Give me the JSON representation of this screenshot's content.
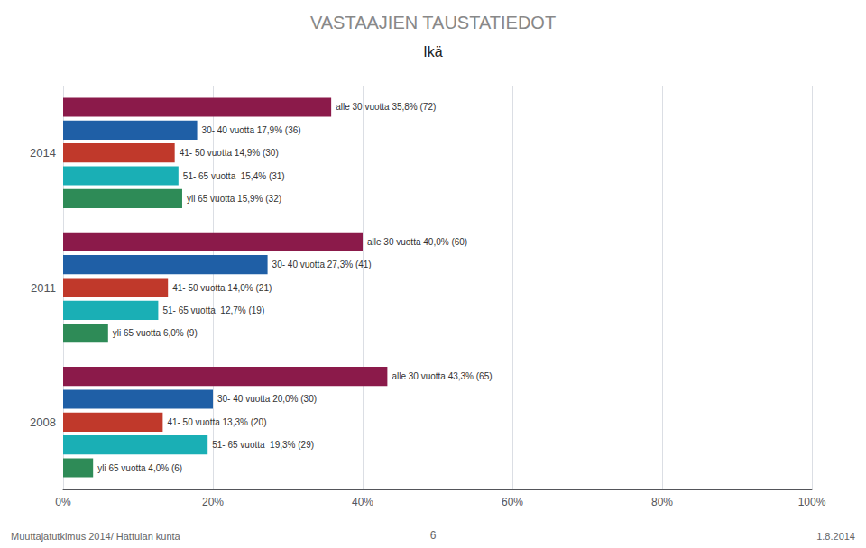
{
  "chart_data": {
    "type": "bar",
    "orientation": "horizontal",
    "title": "VASTAAJIEN TAUSTATIEDOT",
    "subtitle": "Ikä",
    "categories": [
      "2014",
      "2011",
      "2008"
    ],
    "series": [
      {
        "color": "#8B1A4A",
        "values": [
          35.8,
          40.0,
          43.3
        ],
        "value_labels": [
          "alle 30 vuotta 35,8% (72)",
          "alle 30 vuotta 40,0% (60)",
          "alle 30 vuotta 43,3% (65)"
        ]
      },
      {
        "color": "#1F5FA6",
        "values": [
          17.9,
          27.3,
          20.0
        ],
        "value_labels": [
          "30- 40 vuotta 17,9% (36)",
          "30- 40 vuotta 27,3% (41)",
          "30- 40 vuotta 20,0% (30)"
        ]
      },
      {
        "color": "#C0392B",
        "values": [
          14.9,
          14.0,
          13.3
        ],
        "value_labels": [
          "41- 50 vuotta 14,9% (30)",
          "41- 50 vuotta 14,0% (21)",
          "41- 50 vuotta 13,3% (20)"
        ]
      },
      {
        "color": "#1AAFB5",
        "values": [
          15.4,
          12.7,
          19.3
        ],
        "value_labels": [
          "51- 65 vuotta  15,4% (31)",
          "51- 65 vuotta  12,7% (19)",
          "51- 65 vuotta  19,3% (29)"
        ]
      },
      {
        "color": "#2E8B57",
        "values": [
          15.9,
          6.0,
          4.0
        ],
        "value_labels": [
          "yli 65 vuotta 15,9% (32)",
          "yli 65 vuotta 6,0% (9)",
          "yli 65 vuotta 4,0% (6)"
        ]
      }
    ],
    "xlim": [
      0,
      100
    ],
    "xticks": [
      {
        "value": 0,
        "label": "0%"
      },
      {
        "value": 20,
        "label": "20%"
      },
      {
        "value": 40,
        "label": "40%"
      },
      {
        "value": 60,
        "label": "60%"
      },
      {
        "value": 80,
        "label": "80%"
      },
      {
        "value": 100,
        "label": "100%"
      }
    ],
    "grid": true,
    "data_labels": true,
    "annotations": [
      "Muuttajatutkimus 2014/ Hattulan kunta",
      "6",
      "1.8.2014"
    ]
  }
}
